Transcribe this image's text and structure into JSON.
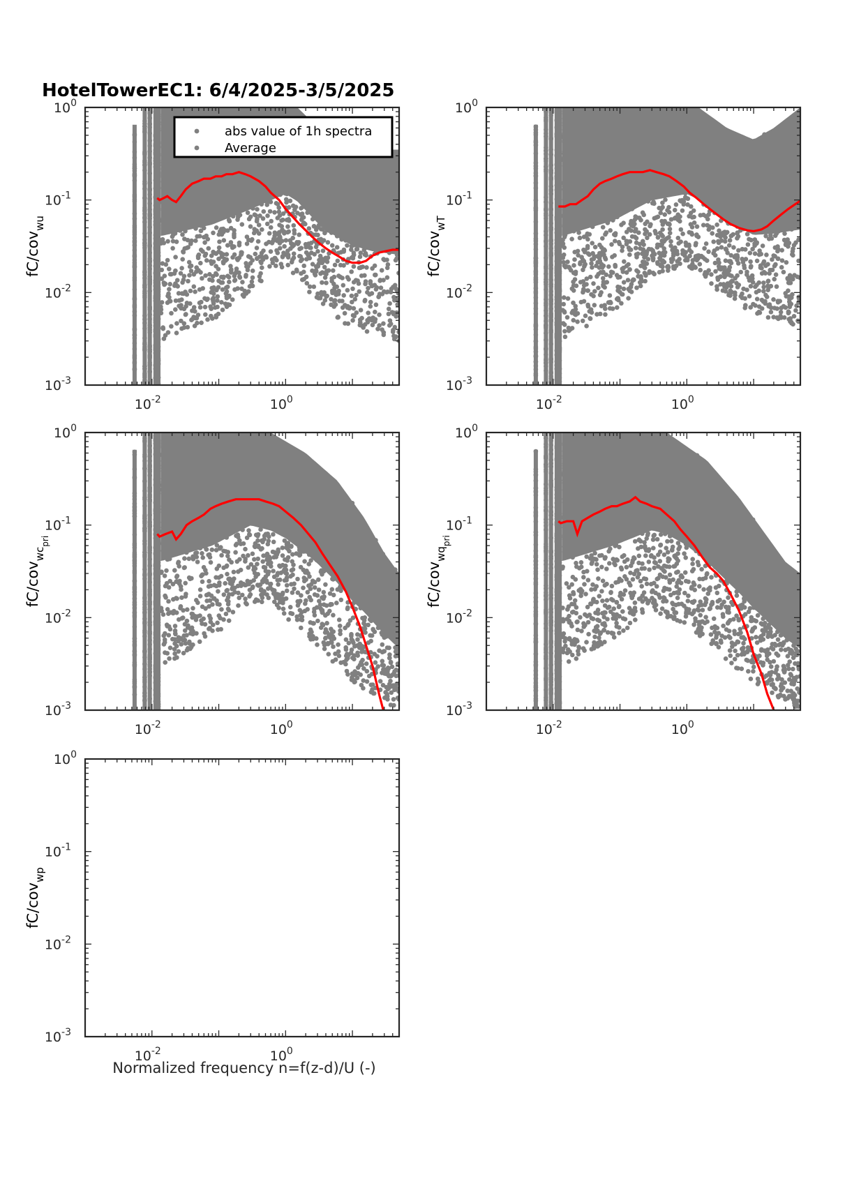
{
  "figure": {
    "title": "HotelTowerEC1: 6/4/2025-3/5/2025",
    "xlabel": "Normalized frequency n=f(z-d)/U (-)"
  },
  "legend": {
    "entries": [
      {
        "label": "abs value of 1h spectra",
        "color": "#808080",
        "marker": "dot"
      },
      {
        "label": "Average",
        "color": "#808080",
        "marker": "dot"
      }
    ]
  },
  "colors": {
    "scatter": "#808080",
    "average": "#ff0000",
    "axes": "#262626"
  },
  "chart_data": [
    {
      "type": "scatter",
      "ylabel_main": "fC/cov",
      "ylabel_sub": "wu",
      "ylabel_subsub": "",
      "x_scale": "log",
      "y_scale": "log",
      "xlim": [
        0.001,
        50
      ],
      "ylim": [
        0.001,
        1
      ],
      "xticks": [
        {
          "label": "10",
          "exp": "-2"
        },
        {
          "label": "10",
          "exp": "0"
        }
      ],
      "yticks": [
        {
          "label": "10",
          "exp": "0"
        },
        {
          "label": "10",
          "exp": "-1"
        },
        {
          "label": "10",
          "exp": "-2"
        },
        {
          "label": "10",
          "exp": "-3"
        }
      ],
      "has_legend": true,
      "has_scatter": true,
      "cloud": {
        "upper": [
          [
            0.014,
            1.0
          ],
          [
            1.5,
            1.0
          ],
          [
            4,
            0.5
          ],
          [
            20,
            0.35
          ],
          [
            50,
            0.35
          ]
        ],
        "lower": [
          [
            0.014,
            0.003
          ],
          [
            0.08,
            0.005
          ],
          [
            0.3,
            0.01
          ],
          [
            1,
            0.02
          ],
          [
            3,
            0.008
          ],
          [
            10,
            0.004
          ],
          [
            50,
            0.003
          ]
        ]
      },
      "average": [
        [
          0.012,
          0.105
        ],
        [
          0.013,
          0.1
        ],
        [
          0.015,
          0.105
        ],
        [
          0.017,
          0.11
        ],
        [
          0.02,
          0.1
        ],
        [
          0.023,
          0.095
        ],
        [
          0.027,
          0.11
        ],
        [
          0.032,
          0.13
        ],
        [
          0.04,
          0.15
        ],
        [
          0.05,
          0.16
        ],
        [
          0.06,
          0.17
        ],
        [
          0.075,
          0.17
        ],
        [
          0.09,
          0.18
        ],
        [
          0.11,
          0.18
        ],
        [
          0.13,
          0.19
        ],
        [
          0.16,
          0.19
        ],
        [
          0.2,
          0.2
        ],
        [
          0.25,
          0.19
        ],
        [
          0.3,
          0.18
        ],
        [
          0.4,
          0.16
        ],
        [
          0.5,
          0.14
        ],
        [
          0.6,
          0.12
        ],
        [
          0.8,
          0.1
        ],
        [
          1.0,
          0.08
        ],
        [
          1.3,
          0.065
        ],
        [
          1.6,
          0.055
        ],
        [
          2.0,
          0.047
        ],
        [
          2.5,
          0.04
        ],
        [
          3.2,
          0.034
        ],
        [
          4,
          0.03
        ],
        [
          5,
          0.027
        ],
        [
          6,
          0.025
        ],
        [
          8,
          0.022
        ],
        [
          10,
          0.021
        ],
        [
          13,
          0.021
        ],
        [
          16,
          0.022
        ],
        [
          20,
          0.025
        ],
        [
          25,
          0.027
        ],
        [
          32,
          0.028
        ],
        [
          40,
          0.029
        ],
        [
          50,
          0.029
        ]
      ]
    },
    {
      "type": "scatter",
      "ylabel_main": "fC/cov",
      "ylabel_sub": "wT",
      "ylabel_subsub": "",
      "x_scale": "log",
      "y_scale": "log",
      "xlim": [
        0.001,
        50
      ],
      "ylim": [
        0.001,
        1
      ],
      "xticks": [
        {
          "label": "10",
          "exp": "-2"
        },
        {
          "label": "10",
          "exp": "0"
        }
      ],
      "yticks": [
        {
          "label": "10",
          "exp": "0"
        },
        {
          "label": "10",
          "exp": "-1"
        },
        {
          "label": "10",
          "exp": "-2"
        },
        {
          "label": "10",
          "exp": "-3"
        }
      ],
      "has_legend": false,
      "has_scatter": true,
      "cloud": {
        "upper": [
          [
            0.014,
            1.0
          ],
          [
            1.5,
            1.0
          ],
          [
            4,
            0.6
          ],
          [
            10,
            0.45
          ],
          [
            20,
            0.6
          ],
          [
            50,
            1.0
          ]
        ],
        "lower": [
          [
            0.014,
            0.003
          ],
          [
            0.08,
            0.006
          ],
          [
            0.3,
            0.015
          ],
          [
            1,
            0.02
          ],
          [
            3,
            0.01
          ],
          [
            10,
            0.006
          ],
          [
            50,
            0.004
          ]
        ]
      },
      "average": [
        [
          0.012,
          0.085
        ],
        [
          0.015,
          0.085
        ],
        [
          0.018,
          0.09
        ],
        [
          0.022,
          0.09
        ],
        [
          0.027,
          0.1
        ],
        [
          0.033,
          0.11
        ],
        [
          0.04,
          0.13
        ],
        [
          0.05,
          0.15
        ],
        [
          0.06,
          0.16
        ],
        [
          0.075,
          0.17
        ],
        [
          0.09,
          0.18
        ],
        [
          0.11,
          0.19
        ],
        [
          0.14,
          0.2
        ],
        [
          0.18,
          0.2
        ],
        [
          0.22,
          0.2
        ],
        [
          0.28,
          0.21
        ],
        [
          0.35,
          0.2
        ],
        [
          0.45,
          0.19
        ],
        [
          0.55,
          0.18
        ],
        [
          0.7,
          0.16
        ],
        [
          0.9,
          0.14
        ],
        [
          1.1,
          0.12
        ],
        [
          1.4,
          0.105
        ],
        [
          1.8,
          0.09
        ],
        [
          2.2,
          0.08
        ],
        [
          2.8,
          0.07
        ],
        [
          3.5,
          0.062
        ],
        [
          4.5,
          0.055
        ],
        [
          6,
          0.05
        ],
        [
          8,
          0.047
        ],
        [
          10,
          0.046
        ],
        [
          13,
          0.048
        ],
        [
          16,
          0.052
        ],
        [
          20,
          0.06
        ],
        [
          26,
          0.07
        ],
        [
          33,
          0.08
        ],
        [
          42,
          0.09
        ],
        [
          50,
          0.098
        ]
      ]
    },
    {
      "type": "scatter",
      "ylabel_main": "fC/cov",
      "ylabel_sub": "wc",
      "ylabel_subsub": "pri",
      "x_scale": "log",
      "y_scale": "log",
      "xlim": [
        0.001,
        50
      ],
      "ylim": [
        0.001,
        1
      ],
      "xticks": [
        {
          "label": "10",
          "exp": "-2"
        },
        {
          "label": "10",
          "exp": "0"
        }
      ],
      "yticks": [
        {
          "label": "10",
          "exp": "0"
        },
        {
          "label": "10",
          "exp": "-1"
        },
        {
          "label": "10",
          "exp": "-2"
        },
        {
          "label": "10",
          "exp": "-3"
        }
      ],
      "has_legend": false,
      "has_scatter": true,
      "cloud": {
        "upper": [
          [
            0.014,
            1.0
          ],
          [
            0.6,
            1.0
          ],
          [
            2,
            0.6
          ],
          [
            6,
            0.3
          ],
          [
            15,
            0.12
          ],
          [
            30,
            0.05
          ],
          [
            50,
            0.03
          ]
        ],
        "lower": [
          [
            0.014,
            0.003
          ],
          [
            0.08,
            0.006
          ],
          [
            0.3,
            0.015
          ],
          [
            1,
            0.01
          ],
          [
            3,
            0.005
          ],
          [
            10,
            0.002
          ],
          [
            50,
            0.001
          ]
        ]
      },
      "average": [
        [
          0.012,
          0.08
        ],
        [
          0.013,
          0.075
        ],
        [
          0.016,
          0.08
        ],
        [
          0.02,
          0.085
        ],
        [
          0.023,
          0.07
        ],
        [
          0.027,
          0.08
        ],
        [
          0.033,
          0.1
        ],
        [
          0.04,
          0.11
        ],
        [
          0.05,
          0.12
        ],
        [
          0.06,
          0.13
        ],
        [
          0.075,
          0.15
        ],
        [
          0.09,
          0.16
        ],
        [
          0.11,
          0.17
        ],
        [
          0.14,
          0.18
        ],
        [
          0.18,
          0.19
        ],
        [
          0.23,
          0.19
        ],
        [
          0.3,
          0.19
        ],
        [
          0.4,
          0.19
        ],
        [
          0.5,
          0.18
        ],
        [
          0.65,
          0.17
        ],
        [
          0.8,
          0.16
        ],
        [
          1.0,
          0.14
        ],
        [
          1.3,
          0.12
        ],
        [
          1.7,
          0.1
        ],
        [
          2.2,
          0.08
        ],
        [
          2.8,
          0.065
        ],
        [
          3.5,
          0.05
        ],
        [
          4.5,
          0.038
        ],
        [
          6,
          0.028
        ],
        [
          8,
          0.019
        ],
        [
          10,
          0.013
        ],
        [
          13,
          0.008
        ],
        [
          16,
          0.005
        ],
        [
          20,
          0.003
        ],
        [
          25,
          0.0015
        ],
        [
          29,
          0.001
        ]
      ]
    },
    {
      "type": "scatter",
      "ylabel_main": "fC/cov",
      "ylabel_sub": "wq",
      "ylabel_subsub": "pri",
      "x_scale": "log",
      "y_scale": "log",
      "xlim": [
        0.001,
        50
      ],
      "ylim": [
        0.001,
        1
      ],
      "xticks": [
        {
          "label": "10",
          "exp": "-2"
        },
        {
          "label": "10",
          "exp": "0"
        }
      ],
      "yticks": [
        {
          "label": "10",
          "exp": "0"
        },
        {
          "label": "10",
          "exp": "-1"
        },
        {
          "label": "10",
          "exp": "-2"
        },
        {
          "label": "10",
          "exp": "-3"
        }
      ],
      "has_legend": false,
      "has_scatter": true,
      "cloud": {
        "upper": [
          [
            0.014,
            1.0
          ],
          [
            0.5,
            1.0
          ],
          [
            2,
            0.5
          ],
          [
            6,
            0.2
          ],
          [
            15,
            0.08
          ],
          [
            30,
            0.04
          ],
          [
            50,
            0.03
          ]
        ],
        "lower": [
          [
            0.014,
            0.003
          ],
          [
            0.08,
            0.006
          ],
          [
            0.3,
            0.012
          ],
          [
            1,
            0.008
          ],
          [
            3,
            0.004
          ],
          [
            10,
            0.002
          ],
          [
            50,
            0.001
          ]
        ]
      },
      "average": [
        [
          0.012,
          0.11
        ],
        [
          0.013,
          0.105
        ],
        [
          0.016,
          0.11
        ],
        [
          0.02,
          0.11
        ],
        [
          0.023,
          0.08
        ],
        [
          0.027,
          0.11
        ],
        [
          0.033,
          0.12
        ],
        [
          0.04,
          0.13
        ],
        [
          0.05,
          0.14
        ],
        [
          0.06,
          0.15
        ],
        [
          0.075,
          0.16
        ],
        [
          0.09,
          0.16
        ],
        [
          0.11,
          0.17
        ],
        [
          0.14,
          0.18
        ],
        [
          0.17,
          0.2
        ],
        [
          0.2,
          0.18
        ],
        [
          0.25,
          0.17
        ],
        [
          0.3,
          0.16
        ],
        [
          0.4,
          0.15
        ],
        [
          0.5,
          0.13
        ],
        [
          0.65,
          0.11
        ],
        [
          0.8,
          0.09
        ],
        [
          1.0,
          0.075
        ],
        [
          1.3,
          0.06
        ],
        [
          1.7,
          0.045
        ],
        [
          2.2,
          0.035
        ],
        [
          2.8,
          0.03
        ],
        [
          3.5,
          0.025
        ],
        [
          4.5,
          0.018
        ],
        [
          6,
          0.012
        ],
        [
          8,
          0.007
        ],
        [
          10,
          0.004
        ],
        [
          13,
          0.0025
        ],
        [
          16,
          0.0015
        ],
        [
          20,
          0.001
        ]
      ]
    },
    {
      "type": "scatter",
      "ylabel_main": "fC/cov",
      "ylabel_sub": "wp",
      "ylabel_subsub": "",
      "x_scale": "log",
      "y_scale": "log",
      "xlim": [
        0.001,
        50
      ],
      "ylim": [
        0.001,
        1
      ],
      "xticks": [
        {
          "label": "10",
          "exp": "-2"
        },
        {
          "label": "10",
          "exp": "0"
        }
      ],
      "yticks": [
        {
          "label": "10",
          "exp": "0"
        },
        {
          "label": "10",
          "exp": "-1"
        },
        {
          "label": "10",
          "exp": "-2"
        },
        {
          "label": "10",
          "exp": "-3"
        }
      ],
      "has_legend": false,
      "has_scatter": false,
      "cloud": null,
      "average": []
    }
  ]
}
